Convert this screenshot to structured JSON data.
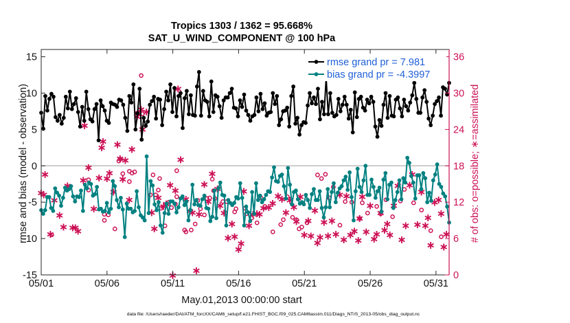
{
  "chart_data": {
    "type": "line",
    "title_line1": "Tropics 1303 / 1362 = 95.668%",
    "title_line2": "SAT_U_WIND_COMPONENT @ 100 hPa",
    "xlabel": "May.01,2013 00:00:00 start",
    "ylabel_left": "rmse and bias (model - observation)",
    "ylabel_right": "# of obs: o=possible; ∗=assimilated",
    "footer": "data file: /Users/raeder/DAI/ATM_forcXX/CAM6_setup/f.e21.FHIST_BGC.f09_025.CAM6assim.011/Diags_NTrS_2013-05/obs_diag_output.nc",
    "xlim": [
      0,
      31
    ],
    "ylim_left": [
      -15,
      16
    ],
    "ylim_right": [
      0,
      37.2
    ],
    "x_ticks": [
      0,
      5,
      10,
      15,
      20,
      25,
      30
    ],
    "x_tick_labels": [
      "05/01",
      "05/06",
      "05/11",
      "05/16",
      "05/21",
      "05/26",
      "05/31"
    ],
    "y_left_ticks": [
      -15,
      -10,
      -5,
      0,
      5,
      10,
      15
    ],
    "y_left_tick_labels": [
      "-15",
      "-10",
      "-5",
      "0",
      "5",
      "10",
      "15"
    ],
    "y_right_ticks": [
      0,
      6,
      12,
      18,
      24,
      30,
      36
    ],
    "y_right_tick_labels": [
      "0",
      "6",
      "12",
      "18",
      "24",
      "30",
      "36"
    ],
    "series": [
      {
        "name": "rmse",
        "legend": "rmse grand pr = 7.981",
        "color": "#000000",
        "axis": "left",
        "values": [
          7.3,
          5.1,
          9.6,
          7.6,
          9.2,
          9.9,
          9.5,
          6.7,
          6.2,
          7.0,
          5.8,
          6.6,
          9.5,
          7.9,
          10.2,
          7.8,
          8.5,
          9.3,
          7.4,
          5.4,
          8.1,
          6.2,
          10.2,
          7.8,
          6.4,
          6.1,
          7.8,
          8.5,
          3.5,
          9.0,
          8.2,
          7.6,
          6.2,
          5.9,
          8.7,
          8.5,
          8.4,
          8.1,
          9.1,
          9.0,
          8.4,
          6.6,
          4.8,
          9.6,
          8.7,
          11.2,
          5.0,
          7.2,
          10.6,
          3.6,
          6.6,
          5.5,
          6.1,
          8.4,
          8.9,
          9.5,
          6.5,
          9.2,
          9.1,
          5.6,
          7.8,
          10.2,
          9.0,
          11.2,
          7.4,
          10.7,
          6.8,
          9.6,
          10.0,
          5.2,
          9.3,
          10.3,
          7.1,
          9.7,
          7.0,
          6.9,
          10.9,
          12.9,
          6.9,
          10.3,
          9.0,
          8.8,
          6.8,
          11.6,
          7.4,
          9.7,
          9.5,
          8.2,
          6.6,
          9.0,
          9.4,
          9.4,
          10.0,
          10.6,
          8.0,
          7.9,
          6.8,
          9.0,
          8.1,
          9.8,
          7.6,
          7.0,
          6.2,
          6.8,
          7.0,
          9.4,
          7.5,
          9.9,
          7.8,
          8.6,
          6.9,
          7.3,
          7.4,
          10.0,
          8.5,
          9.6,
          5.6,
          6.4,
          7.5,
          7.6,
          8.0,
          5.4,
          9.6,
          10.9,
          5.8,
          6.6,
          4.3,
          5.6,
          6.0,
          5.9,
          8.3,
          10.0,
          8.6,
          9.4,
          8.5,
          10.6,
          6.4,
          8.8,
          7.1,
          12.1,
          7.1,
          10.0,
          7.3,
          6.8,
          7.0,
          9.2,
          7.5,
          8.4,
          9.5,
          8.4,
          6.5,
          7.7,
          4.6,
          10.1,
          6.7,
          9.2,
          9.5,
          8.0,
          7.6,
          9.1,
          8.6,
          9.5,
          8.8,
          5.4,
          4.0,
          6.3,
          5.5,
          8.4,
          10.0,
          6.6,
          9.6,
          6.9,
          6.8,
          9.1,
          9.4,
          7.9,
          6.8,
          9.1,
          8.2,
          7.6,
          8.7,
          9.7,
          11.4,
          9.2,
          7.3,
          7.3,
          9.4,
          10.4,
          8.8,
          6.5,
          5.6,
          6.9,
          8.5,
          8.9,
          9.4,
          6.9,
          10.8,
          10.6,
          9.8,
          11.4
        ]
      },
      {
        "name": "bias",
        "legend": "bias grand pr = -4.3997",
        "color": "#008080",
        "axis": "left",
        "values": [
          -6.1,
          -6.6,
          -6.1,
          -4.3,
          -4.3,
          -5.8,
          -6.2,
          -3.1,
          -3.7,
          -4.1,
          -5.5,
          -4.4,
          -3.0,
          -3.4,
          -3.2,
          -2.8,
          -4.2,
          -4.9,
          -4.2,
          -4.3,
          -3.4,
          -6.2,
          -2.6,
          -3.1,
          -2.3,
          -2.5,
          -4.1,
          -3.9,
          -2.9,
          -6.0,
          -5.9,
          -6.3,
          -6.2,
          -5.1,
          -6.4,
          -5.9,
          -2.1,
          -2.8,
          -4.7,
          -5.7,
          -4.4,
          -6.0,
          -9.8,
          -5.2,
          -5.9,
          -5.9,
          -6.4,
          -6.2,
          -3.5,
          -5.7,
          -6.8,
          -7.1,
          -7.5,
          1.3,
          -6.5,
          -2.1,
          -2.7,
          -5.3,
          -6.1,
          -5.0,
          -8.2,
          -9.2,
          -6.5,
          -5.2,
          -6.6,
          -4.9,
          -4.9,
          -5.2,
          -6.4,
          -5.7,
          -4.5,
          -4.2,
          -5.4,
          -4.9,
          -7.5,
          -6.1,
          -2.6,
          -5.3,
          -4.7,
          -5.4,
          -5.5,
          -4.6,
          -4.1,
          -5.8,
          -5.9,
          -7.6,
          -7.0,
          -3.4,
          -7.2,
          -3.1,
          -2.3,
          -4.0,
          -4.1,
          -8.2,
          -4.7,
          -5.1,
          -5.4,
          -5.1,
          -4.3,
          -4.5,
          -2.4,
          -4.4,
          -8.2,
          -5.6,
          -6.4,
          -7.6,
          -3.6,
          -6.6,
          -2.4,
          -4.7,
          -4.1,
          -5.0,
          -4.6,
          -4.0,
          -3.5,
          -3.6,
          -1.6,
          -0.2,
          -2.1,
          -2.2,
          -1.4,
          -1.2,
          -2.8,
          -4.5,
          -0.3,
          -2.6,
          -5.3,
          -3.6,
          -3.4,
          -4.6,
          -5.2,
          -5.0,
          -5.3,
          -4.0,
          -4.7,
          -5.8,
          -3.9,
          -3.2,
          -4.7,
          -4.7,
          -3.5,
          -5.8,
          -7.1,
          -5.7,
          -3.2,
          -5.7,
          -3.6,
          -2.4,
          -5.0,
          -3.7,
          -3.1,
          -2.8,
          -2.0,
          -1.5,
          -3.3,
          -0.9,
          -4.3,
          -7.5,
          -3.5,
          -0.4,
          -2.9,
          -3.6,
          -2.0,
          0.0,
          -4.0,
          -4.0,
          -1.9,
          -2.9,
          -4.4,
          -3.5,
          -3.0,
          -6.3,
          -1.9,
          -1.0,
          -4.6,
          -2.6,
          -2.3,
          -5.8,
          -4.7,
          -3.6,
          -2.0,
          -4.6,
          -1.7,
          -2.3,
          1.1,
          0.4,
          -1.4,
          -2.3,
          -4.5,
          -1.3,
          -1.3,
          -3.2,
          -1.0,
          -1.7,
          -5.0,
          -3.7,
          -4.8,
          -2.0,
          -1.2,
          0.2,
          -2.5,
          -2.9,
          -3.8,
          -4.2,
          -5.6,
          -7.8
        ]
      }
    ],
    "obs_possible": [
      [
        0.8,
        6.6
      ],
      [
        3.6,
        14.0
      ],
      [
        3.6,
        15.7
      ],
      [
        4.8,
        9.0
      ],
      [
        4.8,
        10.0
      ],
      [
        5.1,
        9.9
      ],
      [
        5.6,
        7.6
      ],
      [
        5.9,
        18.8
      ],
      [
        6.0,
        19.1
      ],
      [
        6.2,
        16.7
      ],
      [
        6.7,
        17.1
      ],
      [
        6.7,
        15.4
      ],
      [
        6.9,
        16.8
      ],
      [
        7.1,
        17.0
      ],
      [
        7.3,
        26.7
      ],
      [
        7.4,
        26.7
      ],
      [
        7.6,
        32.9
      ],
      [
        7.7,
        26.6
      ],
      [
        8.3,
        13.2
      ],
      [
        8.5,
        16.5
      ],
      [
        8.7,
        13.2
      ],
      [
        8.9,
        14.0
      ],
      [
        9.0,
        15.9
      ],
      [
        9.1,
        11.0
      ],
      [
        9.4,
        8.1
      ],
      [
        9.7,
        12.0
      ],
      [
        9.9,
        11.1
      ],
      [
        10.2,
        11.7
      ],
      [
        10.3,
        12.9
      ],
      [
        10.3,
        17.2
      ],
      [
        10.9,
        7.4
      ],
      [
        11.0,
        7.1
      ],
      [
        11.4,
        7.4
      ],
      [
        11.7,
        8.4
      ],
      [
        11.9,
        12.3
      ],
      [
        12.1,
        10.9
      ],
      [
        12.4,
        9.9
      ],
      [
        12.6,
        12.6
      ],
      [
        12.8,
        12.7
      ],
      [
        13.0,
        15.8
      ],
      [
        13.1,
        13.9
      ],
      [
        13.2,
        12.6
      ],
      [
        13.8,
        12.1
      ],
      [
        14.1,
        12.1
      ],
      [
        14.7,
        10.4
      ],
      [
        14.8,
        10.9
      ],
      [
        15.5,
        11.0
      ],
      [
        15.6,
        10.1
      ],
      [
        16.0,
        9.4
      ],
      [
        16.4,
        8.6
      ],
      [
        16.7,
        12.7
      ],
      [
        17.0,
        11.3
      ],
      [
        17.6,
        7.1
      ],
      [
        18.2,
        8.3
      ],
      [
        18.4,
        9.1
      ],
      [
        18.7,
        12.9
      ],
      [
        19.1,
        9.5
      ],
      [
        19.4,
        9.1
      ],
      [
        19.6,
        7.6
      ],
      [
        19.8,
        7.9
      ],
      [
        20.2,
        8.6
      ],
      [
        21.0,
        16.5
      ],
      [
        21.3,
        15.9
      ],
      [
        21.6,
        16.6
      ],
      [
        21.9,
        12.7
      ],
      [
        22.2,
        14.5
      ],
      [
        22.7,
        8.2
      ],
      [
        23.1,
        12.1
      ],
      [
        23.6,
        12.0
      ],
      [
        24.2,
        9.3
      ],
      [
        24.4,
        11.9
      ],
      [
        24.8,
        10.2
      ],
      [
        25.5,
        11.3
      ],
      [
        25.8,
        10.1
      ],
      [
        26.2,
        12.4
      ],
      [
        26.7,
        9.6
      ],
      [
        27.3,
        12.2
      ],
      [
        27.6,
        14.1
      ],
      [
        28.3,
        11.9
      ],
      [
        28.9,
        10.7
      ],
      [
        29.6,
        7.3
      ],
      [
        30.4,
        6.3
      ]
    ],
    "obs_assimilated": [
      [
        0.0,
        13.6
      ],
      [
        0.2,
        13.3
      ],
      [
        0.3,
        16.7
      ],
      [
        0.7,
        6.8
      ],
      [
        1.0,
        12.4
      ],
      [
        1.4,
        9.9
      ],
      [
        1.7,
        8.0
      ],
      [
        2.0,
        14.8
      ],
      [
        2.4,
        7.9
      ],
      [
        2.6,
        7.9
      ],
      [
        2.8,
        7.3
      ],
      [
        3.2,
        15.7
      ],
      [
        3.3,
        24.7
      ],
      [
        3.6,
        17.8
      ],
      [
        4.0,
        11.0
      ],
      [
        4.4,
        16.1
      ],
      [
        4.6,
        21.1
      ],
      [
        4.7,
        22.1
      ],
      [
        5.0,
        16.0
      ],
      [
        5.2,
        16.9
      ],
      [
        5.5,
        13.8
      ],
      [
        5.8,
        21.6
      ],
      [
        6.0,
        19.3
      ],
      [
        6.2,
        15.9
      ],
      [
        6.4,
        19.0
      ],
      [
        6.7,
        12.5
      ],
      [
        6.9,
        20.8
      ],
      [
        7.3,
        26.2
      ],
      [
        7.6,
        27.4
      ],
      [
        7.7,
        24.1
      ],
      [
        8.0,
        27.0
      ],
      [
        8.4,
        10.4
      ],
      [
        8.6,
        7.7
      ],
      [
        8.9,
        12.8
      ],
      [
        9.3,
        11.4
      ],
      [
        9.5,
        11.8
      ],
      [
        9.8,
        14.9
      ],
      [
        10.0,
        0.0
      ],
      [
        10.2,
        14.0
      ],
      [
        10.4,
        30.8
      ],
      [
        10.6,
        19.1
      ],
      [
        11.0,
        12.6
      ],
      [
        11.3,
        10.6
      ],
      [
        11.5,
        10.4
      ],
      [
        11.8,
        0.8
      ],
      [
        12.0,
        10.1
      ],
      [
        12.4,
        15.0
      ],
      [
        12.7,
        12.2
      ],
      [
        13.0,
        16.8
      ],
      [
        13.4,
        14.3
      ],
      [
        13.6,
        11.5
      ],
      [
        13.9,
        10.3
      ],
      [
        14.2,
        6.2
      ],
      [
        14.5,
        8.5
      ],
      [
        14.7,
        6.4
      ],
      [
        15.0,
        4.3
      ],
      [
        15.2,
        5.3
      ],
      [
        15.4,
        13.9
      ],
      [
        15.8,
        8.2
      ],
      [
        16.1,
        10.1
      ],
      [
        16.4,
        10.2
      ],
      [
        16.6,
        10.1
      ],
      [
        16.9,
        11.1
      ],
      [
        17.3,
        11.2
      ],
      [
        17.6,
        11.9
      ],
      [
        18.0,
        13.1
      ],
      [
        18.3,
        12.6
      ],
      [
        18.6,
        10.4
      ],
      [
        18.9,
        12.4
      ],
      [
        19.2,
        11.3
      ],
      [
        19.4,
        8.9
      ],
      [
        19.7,
        13.0
      ],
      [
        20.0,
        6.7
      ],
      [
        20.3,
        9.0
      ],
      [
        20.5,
        6.5
      ],
      [
        20.8,
        10.7
      ],
      [
        21.0,
        5.4
      ],
      [
        21.2,
        6.3
      ],
      [
        21.5,
        8.8
      ],
      [
        21.8,
        6.5
      ],
      [
        22.1,
        9.0
      ],
      [
        22.4,
        6.8
      ],
      [
        22.7,
        13.3
      ],
      [
        23.0,
        5.9
      ],
      [
        23.2,
        13.1
      ],
      [
        23.5,
        6.7
      ],
      [
        23.8,
        7.3
      ],
      [
        24.1,
        5.8
      ],
      [
        24.2,
        9.4
      ],
      [
        24.4,
        13.0
      ],
      [
        24.7,
        7.2
      ],
      [
        25.0,
        11.5
      ],
      [
        25.3,
        6.0
      ],
      [
        25.5,
        6.8
      ],
      [
        25.8,
        10.3
      ],
      [
        26.1,
        7.5
      ],
      [
        26.3,
        8.5
      ],
      [
        26.5,
        6.7
      ],
      [
        26.8,
        11.5
      ],
      [
        27.1,
        14.8
      ],
      [
        27.4,
        5.9
      ],
      [
        27.7,
        8.2
      ],
      [
        28.0,
        14.9
      ],
      [
        28.2,
        16.7
      ],
      [
        28.6,
        8.4
      ],
      [
        28.9,
        13.8
      ],
      [
        29.2,
        8.2
      ],
      [
        29.4,
        9.5
      ],
      [
        29.6,
        5.0
      ],
      [
        29.9,
        12.1
      ],
      [
        30.2,
        12.5
      ],
      [
        30.4,
        10.2
      ],
      [
        30.6,
        4.7
      ],
      [
        30.8,
        6.8
      ]
    ],
    "obs_color": "#cc1155",
    "zero_line_color": "#bbbbbb",
    "legend_text_color": "#1f5fd6"
  }
}
